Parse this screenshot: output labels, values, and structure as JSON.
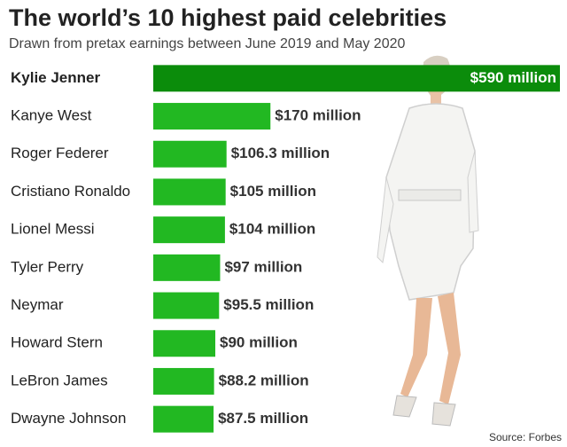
{
  "chart_data": {
    "type": "bar",
    "orientation": "horizontal",
    "title": "The world’s 10 highest paid celebrities",
    "subtitle": "Drawn from pretax earnings between June 2019 and May 2020",
    "source": "Source: Forbes",
    "categories": [
      "Kylie Jenner",
      "Kanye West",
      "Roger Federer",
      "Cristiano Ronaldo",
      "Lionel Messi",
      "Tyler Perry",
      "Neymar",
      "Howard Stern",
      "LeBron James",
      "Dwayne Johnson"
    ],
    "values": [
      590,
      170,
      106.3,
      105,
      104,
      97,
      95.5,
      90,
      88.2,
      87.5
    ],
    "value_labels": [
      "$590 million",
      "$170 million",
      "$106.3 million",
      "$105 million",
      "$104 million",
      "$97 million",
      "$95.5 million",
      "$90 million",
      "$88.2 million",
      "$87.5 million"
    ],
    "colors": [
      "#0b8c0b",
      "#22b822",
      "#22b822",
      "#22b822",
      "#22b822",
      "#22b822",
      "#22b822",
      "#22b822",
      "#22b822",
      "#22b822"
    ]
  }
}
